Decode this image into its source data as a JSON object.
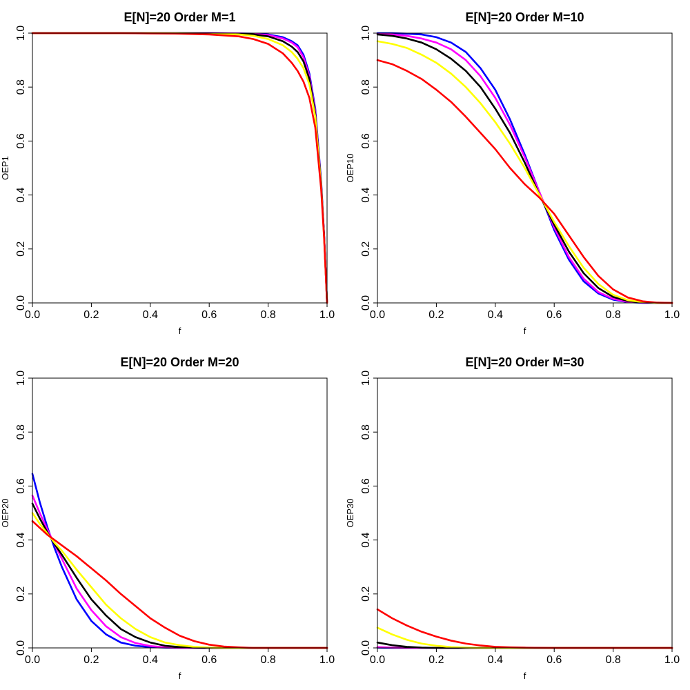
{
  "chart_data": [
    {
      "type": "line",
      "title": "E[N]=20   Order M=1",
      "xlabel": "f",
      "ylabel": "OEP1",
      "xlim": [
        0,
        1
      ],
      "ylim": [
        0,
        1
      ],
      "xticks": [
        "0.0",
        "0.2",
        "0.4",
        "0.6",
        "0.8",
        "1.0"
      ],
      "yticks": [
        "0.0",
        "0.2",
        "0.4",
        "0.6",
        "0.8",
        "1.0"
      ],
      "grid": false,
      "x": [
        0,
        0.1,
        0.2,
        0.3,
        0.4,
        0.5,
        0.6,
        0.7,
        0.75,
        0.8,
        0.85,
        0.88,
        0.9,
        0.92,
        0.94,
        0.96,
        0.98,
        0.99,
        1.0
      ],
      "series": [
        {
          "color": "#0000ff",
          "values": [
            1.0,
            1.0,
            1.0,
            1.0,
            1.0,
            1.0,
            1.0,
            0.999,
            0.998,
            0.995,
            0.985,
            0.97,
            0.955,
            0.92,
            0.85,
            0.72,
            0.45,
            0.25,
            0.0
          ]
        },
        {
          "color": "#ff00ff",
          "values": [
            1.0,
            1.0,
            1.0,
            1.0,
            1.0,
            1.0,
            1.0,
            0.999,
            0.997,
            0.993,
            0.98,
            0.965,
            0.948,
            0.91,
            0.84,
            0.71,
            0.44,
            0.25,
            0.0
          ]
        },
        {
          "color": "#000000",
          "values": [
            1.0,
            1.0,
            1.0,
            1.0,
            1.0,
            1.0,
            0.999,
            0.998,
            0.995,
            0.988,
            0.97,
            0.95,
            0.93,
            0.895,
            0.83,
            0.7,
            0.44,
            0.25,
            0.0
          ]
        },
        {
          "color": "#ffff00",
          "values": [
            1.0,
            1.0,
            1.0,
            1.0,
            1.0,
            0.999,
            0.998,
            0.995,
            0.99,
            0.978,
            0.955,
            0.93,
            0.905,
            0.87,
            0.81,
            0.69,
            0.43,
            0.24,
            0.0
          ]
        },
        {
          "color": "#ff0000",
          "values": [
            1.0,
            1.0,
            1.0,
            1.0,
            0.999,
            0.998,
            0.995,
            0.988,
            0.978,
            0.96,
            0.925,
            0.89,
            0.86,
            0.82,
            0.76,
            0.65,
            0.42,
            0.24,
            0.0
          ]
        }
      ]
    },
    {
      "type": "line",
      "title": "E[N]=20   Order M=10",
      "xlabel": "f",
      "ylabel": "OEP10",
      "xlim": [
        0,
        1
      ],
      "ylim": [
        0,
        1
      ],
      "xticks": [
        "0.0",
        "0.2",
        "0.4",
        "0.6",
        "0.8",
        "1.0"
      ],
      "yticks": [
        "0.0",
        "0.2",
        "0.4",
        "0.6",
        "0.8",
        "1.0"
      ],
      "grid": false,
      "x": [
        0,
        0.05,
        0.1,
        0.15,
        0.2,
        0.25,
        0.3,
        0.35,
        0.4,
        0.45,
        0.5,
        0.55,
        0.6,
        0.65,
        0.7,
        0.75,
        0.8,
        0.85,
        0.9,
        0.95,
        1.0
      ],
      "series": [
        {
          "color": "#0000ff",
          "values": [
            1.0,
            1.0,
            0.998,
            0.995,
            0.985,
            0.965,
            0.93,
            0.87,
            0.79,
            0.68,
            0.55,
            0.41,
            0.27,
            0.16,
            0.08,
            0.035,
            0.012,
            0.003,
            0.0,
            0.0,
            0.0
          ]
        },
        {
          "color": "#ff00ff",
          "values": [
            0.998,
            0.995,
            0.99,
            0.98,
            0.965,
            0.94,
            0.9,
            0.84,
            0.76,
            0.66,
            0.54,
            0.41,
            0.28,
            0.17,
            0.09,
            0.04,
            0.015,
            0.004,
            0.001,
            0.0,
            0.0
          ]
        },
        {
          "color": "#000000",
          "values": [
            0.995,
            0.99,
            0.98,
            0.965,
            0.94,
            0.905,
            0.86,
            0.8,
            0.72,
            0.63,
            0.52,
            0.4,
            0.29,
            0.19,
            0.11,
            0.055,
            0.022,
            0.007,
            0.002,
            0.0,
            0.0
          ]
        },
        {
          "color": "#ffff00",
          "values": [
            0.97,
            0.96,
            0.945,
            0.92,
            0.89,
            0.85,
            0.8,
            0.74,
            0.67,
            0.59,
            0.5,
            0.4,
            0.3,
            0.21,
            0.13,
            0.07,
            0.03,
            0.01,
            0.003,
            0.0,
            0.0
          ]
        },
        {
          "color": "#ff0000",
          "values": [
            0.9,
            0.885,
            0.86,
            0.83,
            0.79,
            0.745,
            0.69,
            0.63,
            0.57,
            0.5,
            0.44,
            0.39,
            0.33,
            0.25,
            0.17,
            0.1,
            0.05,
            0.02,
            0.006,
            0.001,
            0.0
          ]
        }
      ]
    },
    {
      "type": "line",
      "title": "E[N]=20   Order M=20",
      "xlabel": "f",
      "ylabel": "OEP20",
      "xlim": [
        0,
        1
      ],
      "ylim": [
        0,
        1
      ],
      "xticks": [
        "0.0",
        "0.2",
        "0.4",
        "0.6",
        "0.8",
        "1.0"
      ],
      "yticks": [
        "0.0",
        "0.2",
        "0.4",
        "0.6",
        "0.8",
        "1.0"
      ],
      "grid": false,
      "x": [
        0,
        0.025,
        0.05,
        0.075,
        0.1,
        0.15,
        0.2,
        0.25,
        0.3,
        0.35,
        0.4,
        0.45,
        0.5,
        0.55,
        0.6,
        0.65,
        0.7,
        0.75,
        0.8,
        0.9,
        1.0
      ],
      "series": [
        {
          "color": "#0000ff",
          "values": [
            0.645,
            0.54,
            0.45,
            0.37,
            0.3,
            0.18,
            0.1,
            0.05,
            0.02,
            0.008,
            0.003,
            0.001,
            0.0,
            0.0,
            0.0,
            0.0,
            0.0,
            0.0,
            0.0,
            0.0,
            0.0
          ]
        },
        {
          "color": "#ff00ff",
          "values": [
            0.565,
            0.5,
            0.44,
            0.385,
            0.33,
            0.22,
            0.14,
            0.08,
            0.04,
            0.018,
            0.007,
            0.002,
            0.0,
            0.0,
            0.0,
            0.0,
            0.0,
            0.0,
            0.0,
            0.0,
            0.0
          ]
        },
        {
          "color": "#000000",
          "values": [
            0.535,
            0.48,
            0.43,
            0.385,
            0.345,
            0.26,
            0.18,
            0.12,
            0.07,
            0.04,
            0.02,
            0.008,
            0.003,
            0.001,
            0.0,
            0.0,
            0.0,
            0.0,
            0.0,
            0.0,
            0.0
          ]
        },
        {
          "color": "#ffff00",
          "values": [
            0.5,
            0.46,
            0.425,
            0.39,
            0.36,
            0.29,
            0.225,
            0.16,
            0.11,
            0.07,
            0.04,
            0.02,
            0.01,
            0.004,
            0.001,
            0.0,
            0.0,
            0.0,
            0.0,
            0.0,
            0.0
          ]
        },
        {
          "color": "#ff0000",
          "values": [
            0.47,
            0.445,
            0.42,
            0.4,
            0.38,
            0.34,
            0.295,
            0.25,
            0.2,
            0.155,
            0.11,
            0.075,
            0.045,
            0.025,
            0.012,
            0.005,
            0.002,
            0.0,
            0.0,
            0.0,
            0.0
          ]
        }
      ]
    },
    {
      "type": "line",
      "title": "E[N]=20   Order M=30",
      "xlabel": "f",
      "ylabel": "OEP30",
      "xlim": [
        0,
        1
      ],
      "ylim": [
        0,
        1
      ],
      "xticks": [
        "0.0",
        "0.2",
        "0.4",
        "0.6",
        "0.8",
        "1.0"
      ],
      "yticks": [
        "0.0",
        "0.2",
        "0.4",
        "0.6",
        "0.8",
        "1.0"
      ],
      "grid": false,
      "x": [
        0,
        0.05,
        0.1,
        0.15,
        0.2,
        0.25,
        0.3,
        0.35,
        0.4,
        0.45,
        0.5,
        0.6,
        0.7,
        0.8,
        0.9,
        1.0
      ],
      "series": [
        {
          "color": "#0000ff",
          "values": [
            0.001,
            0.0,
            0.0,
            0.0,
            0.0,
            0.0,
            0.0,
            0.0,
            0.0,
            0.0,
            0.0,
            0.0,
            0.0,
            0.0,
            0.0,
            0.0
          ]
        },
        {
          "color": "#ff00ff",
          "values": [
            0.003,
            0.001,
            0.0,
            0.0,
            0.0,
            0.0,
            0.0,
            0.0,
            0.0,
            0.0,
            0.0,
            0.0,
            0.0,
            0.0,
            0.0,
            0.0
          ]
        },
        {
          "color": "#000000",
          "values": [
            0.02,
            0.01,
            0.004,
            0.001,
            0.0,
            0.0,
            0.0,
            0.0,
            0.0,
            0.0,
            0.0,
            0.0,
            0.0,
            0.0,
            0.0,
            0.0
          ]
        },
        {
          "color": "#ffff00",
          "values": [
            0.075,
            0.05,
            0.03,
            0.016,
            0.008,
            0.003,
            0.001,
            0.0,
            0.0,
            0.0,
            0.0,
            0.0,
            0.0,
            0.0,
            0.0,
            0.0
          ]
        },
        {
          "color": "#ff0000",
          "values": [
            0.143,
            0.11,
            0.083,
            0.06,
            0.042,
            0.027,
            0.016,
            0.009,
            0.004,
            0.002,
            0.001,
            0.0,
            0.0,
            0.0,
            0.0,
            0.0
          ]
        }
      ]
    }
  ]
}
